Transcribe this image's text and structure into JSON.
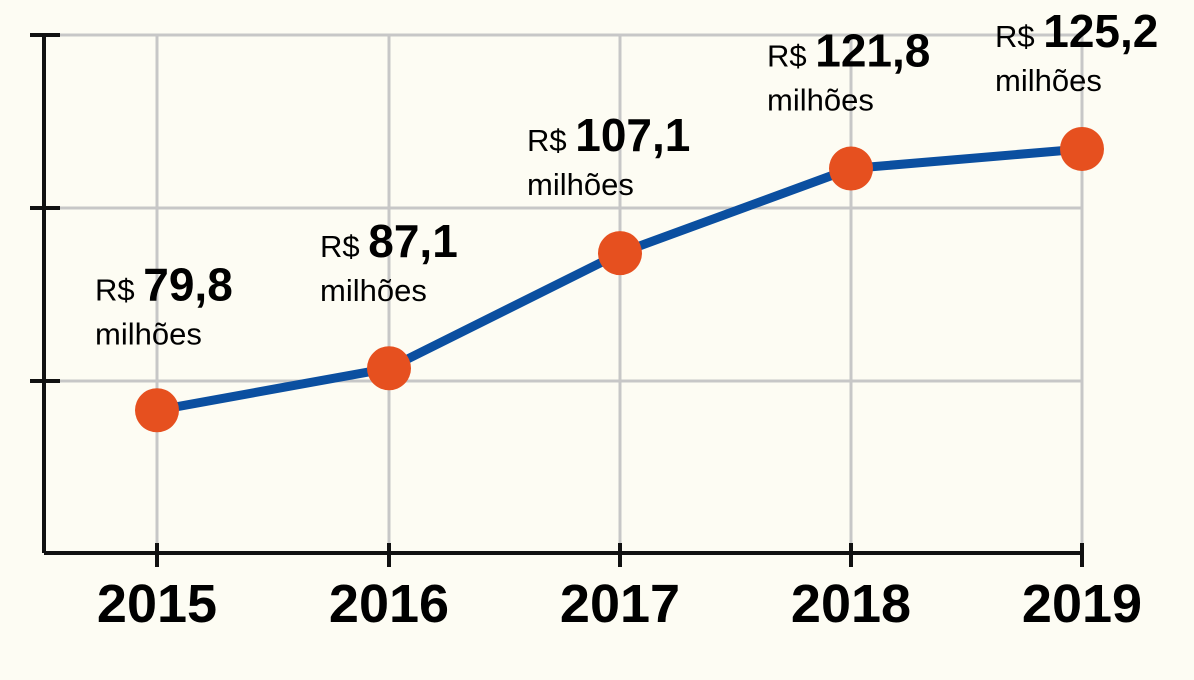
{
  "chart_data": {
    "type": "line",
    "categories": [
      "2015",
      "2016",
      "2017",
      "2018",
      "2019"
    ],
    "values": [
      79.8,
      87.1,
      107.1,
      121.8,
      125.2
    ],
    "data_labels": [
      {
        "prefix": "R$",
        "value": "79,8",
        "unit": "milhões"
      },
      {
        "prefix": "R$",
        "value": "87,1",
        "unit": "milhões"
      },
      {
        "prefix": "R$",
        "value": "107,1",
        "unit": "milhões"
      },
      {
        "prefix": "R$",
        "value": "121,8",
        "unit": "milhões"
      },
      {
        "prefix": "R$",
        "value": "125,2",
        "unit": "milhões"
      }
    ],
    "title": "",
    "xlabel": "",
    "ylabel": "",
    "ylim": [
      55,
      145
    ],
    "grid": true,
    "line_color": "#0b4fa0",
    "marker_color": "#e6501f"
  }
}
